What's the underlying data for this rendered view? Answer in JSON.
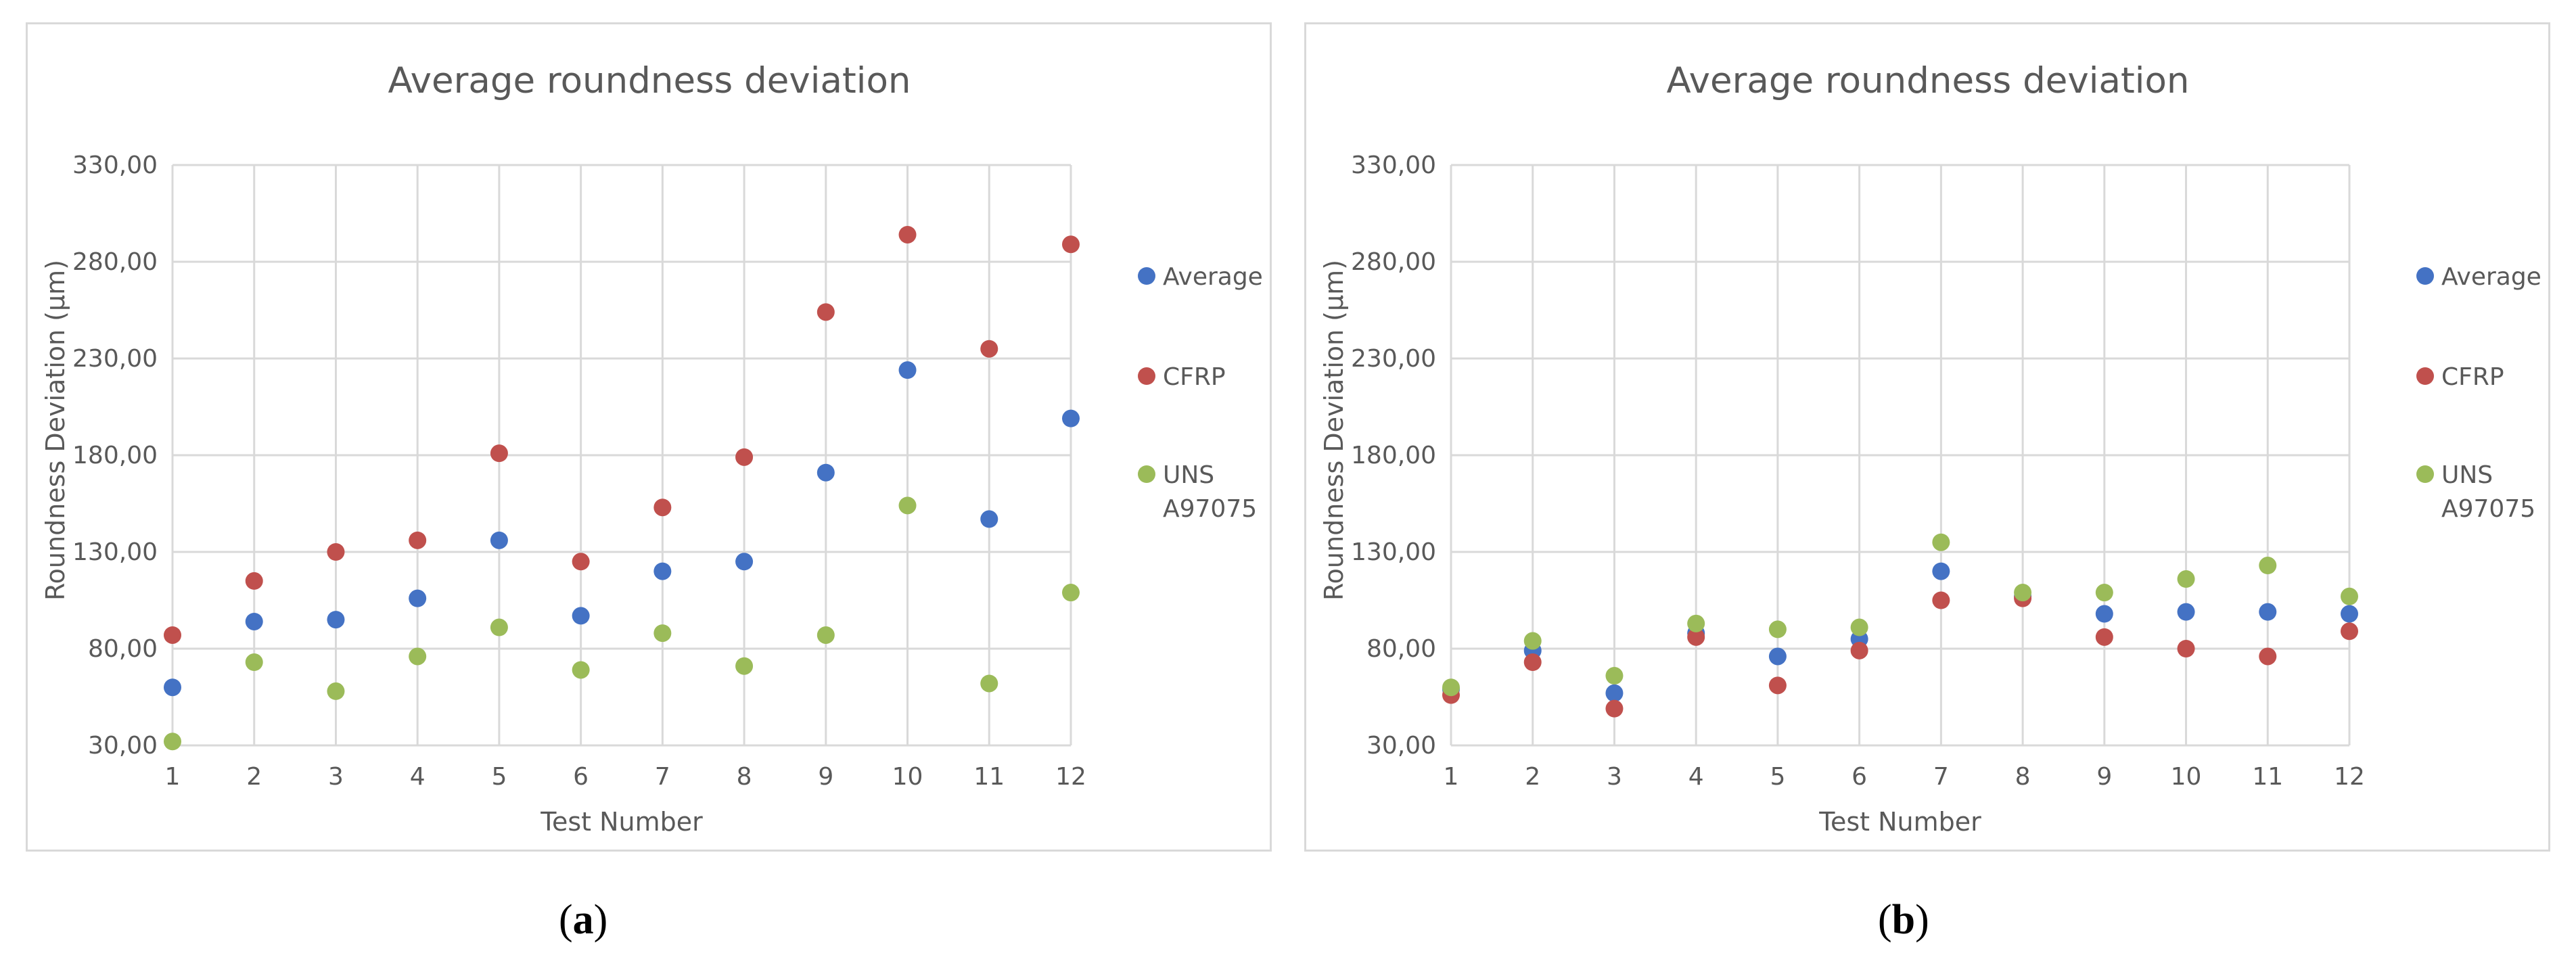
{
  "chart_data": [
    {
      "type": "scatter",
      "panel": "a",
      "title": "Average roundness deviation",
      "xlabel": "Test Number",
      "ylabel": "Roundness Deviation (µm)",
      "x": [
        1,
        2,
        3,
        4,
        5,
        6,
        7,
        8,
        9,
        10,
        11,
        12
      ],
      "xlim": [
        1,
        12
      ],
      "ylim": [
        30,
        330
      ],
      "yticks": [
        "30,00",
        "80,00",
        "130,00",
        "180,00",
        "230,00",
        "280,00",
        "330,00"
      ],
      "ytick_values": [
        30,
        80,
        130,
        180,
        230,
        280,
        330
      ],
      "grid": true,
      "legend_position": "right",
      "series": [
        {
          "name": "Average",
          "color": "#4472c4",
          "values": [
            60,
            94,
            95,
            106,
            136,
            97,
            120,
            125,
            171,
            224,
            147,
            199
          ]
        },
        {
          "name": "CFRP",
          "color": "#c0504d",
          "values": [
            87,
            115,
            130,
            136,
            181,
            125,
            153,
            179,
            254,
            294,
            235,
            289
          ]
        },
        {
          "name": "UNS A97075",
          "color": "#9bbb59",
          "values": [
            32,
            73,
            58,
            76,
            91,
            69,
            88,
            71,
            87,
            154,
            62,
            109
          ]
        }
      ]
    },
    {
      "type": "scatter",
      "panel": "b",
      "title": "Average roundness deviation",
      "xlabel": "Test Number",
      "ylabel": "Roundness Deviation (µm)",
      "x": [
        1,
        2,
        3,
        4,
        5,
        6,
        7,
        8,
        9,
        10,
        11,
        12
      ],
      "xlim": [
        1,
        12
      ],
      "ylim": [
        30,
        330
      ],
      "yticks": [
        "30,00",
        "80,00",
        "130,00",
        "180,00",
        "230,00",
        "280,00",
        "330,00"
      ],
      "ytick_values": [
        30,
        80,
        130,
        180,
        230,
        280,
        330
      ],
      "grid": true,
      "legend_position": "right",
      "series": [
        {
          "name": "Average",
          "color": "#4472c4",
          "values": [
            59,
            79,
            57,
            88,
            76,
            85,
            120,
            107,
            98,
            99,
            99,
            98
          ]
        },
        {
          "name": "CFRP",
          "color": "#c0504d",
          "values": [
            56,
            73,
            49,
            86,
            61,
            79,
            105,
            106,
            86,
            80,
            76,
            89
          ]
        },
        {
          "name": "UNS A97075",
          "color": "#9bbb59",
          "values": [
            60,
            84,
            66,
            93,
            90,
            91,
            135,
            109,
            109,
            116,
            123,
            107
          ]
        }
      ]
    }
  ],
  "captions": {
    "a": {
      "letter": "a"
    },
    "b": {
      "letter": "b"
    }
  }
}
